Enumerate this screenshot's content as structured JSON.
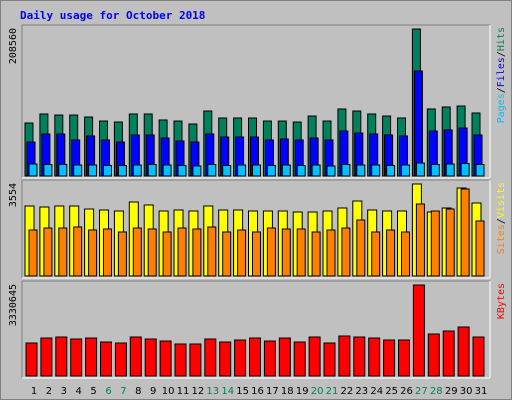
{
  "chart_data": [
    {
      "type": "bar",
      "title": "Daily usage for October 2018",
      "legend_separator": "/",
      "ylim": [
        0,
        208560
      ],
      "yticks": [
        208560
      ],
      "series": [
        {
          "name": "Hits",
          "color": "#00805c",
          "values": [
            75200,
            88000,
            86500,
            86500,
            83700,
            78000,
            76600,
            88000,
            88000,
            79500,
            78000,
            73800,
            92200,
            82300,
            82300,
            82300,
            78000,
            78000,
            76600,
            85100,
            78000,
            95100,
            92200,
            88000,
            85100,
            82300,
            208560,
            95100,
            97900,
            99300,
            89400
          ]
        },
        {
          "name": "Files",
          "color": "#0000ff",
          "values": [
            48200,
            59600,
            59600,
            51100,
            56800,
            51100,
            48200,
            58200,
            58200,
            53900,
            49700,
            48200,
            59600,
            55300,
            55300,
            55300,
            51100,
            52500,
            51100,
            53900,
            51100,
            63800,
            61000,
            59600,
            58200,
            56800,
            149000,
            63800,
            65300,
            68100,
            58200
          ]
        },
        {
          "name": "Pages",
          "color": "#00c0ff",
          "values": [
            17000,
            16300,
            16500,
            15600,
            15600,
            14900,
            14900,
            15600,
            16300,
            15600,
            14900,
            14200,
            16300,
            14900,
            15600,
            15600,
            14900,
            15600,
            14900,
            15600,
            14200,
            16300,
            15600,
            15600,
            14900,
            15600,
            18400,
            16300,
            17000,
            17700,
            16300
          ]
        }
      ]
    },
    {
      "type": "bar",
      "legend_separator": "/",
      "ylim": [
        0,
        3554
      ],
      "yticks": [
        3554
      ],
      "series": [
        {
          "name": "Visits",
          "color": "#ffff00",
          "values": [
            2704,
            2665,
            2704,
            2704,
            2588,
            2550,
            2511,
            2859,
            2743,
            2511,
            2550,
            2511,
            2704,
            2550,
            2550,
            2511,
            2511,
            2511,
            2472,
            2472,
            2511,
            2627,
            2897,
            2550,
            2511,
            2511,
            3554,
            2472,
            2627,
            3399,
            2820
          ]
        },
        {
          "name": "Sites",
          "color": "#ff8000",
          "values": [
            1777,
            1854,
            1854,
            1893,
            1777,
            1816,
            1700,
            1854,
            1816,
            1700,
            1854,
            1816,
            1893,
            1700,
            1777,
            1700,
            1854,
            1816,
            1816,
            1700,
            1777,
            1854,
            2163,
            1700,
            1777,
            1700,
            2781,
            2511,
            2588,
            3361,
            2125
          ]
        }
      ]
    },
    {
      "type": "bar",
      "ylim": [
        0,
        3330645
      ],
      "yticks": [
        3330645
      ],
      "categories": [
        "1",
        "2",
        "3",
        "4",
        "5",
        "6",
        "7",
        "8",
        "9",
        "10",
        "11",
        "12",
        "13",
        "14",
        "15",
        "16",
        "17",
        "18",
        "19",
        "20",
        "21",
        "22",
        "23",
        "24",
        "25",
        "26",
        "27",
        "28",
        "29",
        "30",
        "31"
      ],
      "highlighted_categories": [
        "6",
        "7",
        "13",
        "14",
        "20",
        "21",
        "27",
        "28"
      ],
      "highlight_color": "#00805c",
      "series": [
        {
          "name": "KBytes",
          "color": "#ff0000",
          "values": [
            1207800,
            1390800,
            1427400,
            1354200,
            1390800,
            1244400,
            1207800,
            1427400,
            1354200,
            1281000,
            1171200,
            1171200,
            1354200,
            1244400,
            1317600,
            1390800,
            1281000,
            1390800,
            1244400,
            1427400,
            1207800,
            1464000,
            1427400,
            1390800,
            1317600,
            1317600,
            3330645,
            1537200,
            1647000,
            1793400,
            1427400
          ]
        }
      ]
    }
  ]
}
